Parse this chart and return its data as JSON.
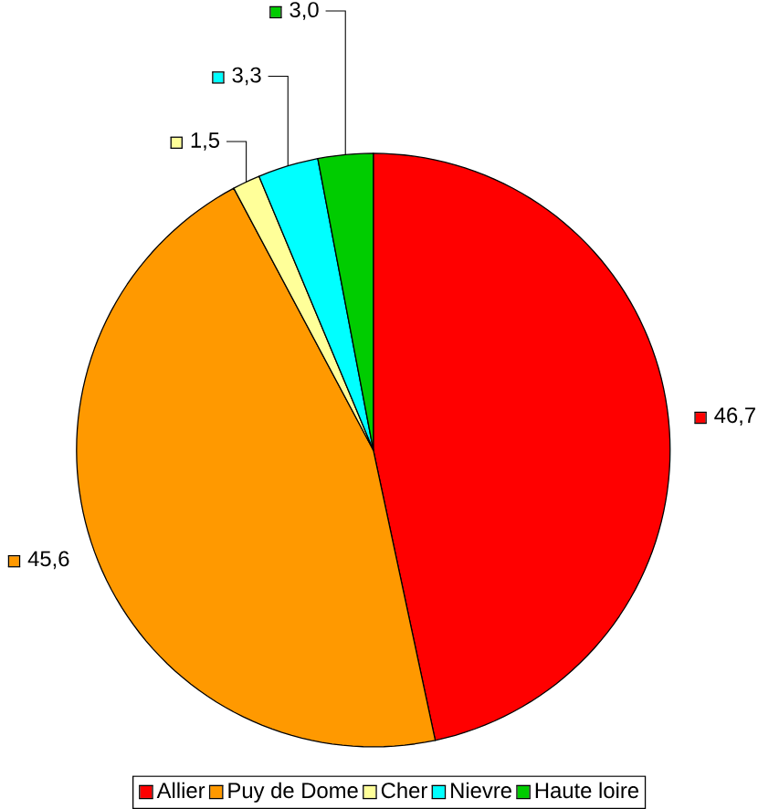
{
  "chart_data": {
    "type": "pie",
    "categories": [
      "Allier",
      "Puy de Dome",
      "Cher",
      "Nievre",
      "Haute loire"
    ],
    "values": [
      46.7,
      45.6,
      1.5,
      3.3,
      3.0
    ],
    "colors": [
      "#ff0000",
      "#ff9900",
      "#ffff99",
      "#00ffff",
      "#00cc00"
    ],
    "value_labels": [
      "46,7",
      "45,6",
      "1,5",
      "3,3",
      "3,0"
    ],
    "legend": "bottom"
  }
}
